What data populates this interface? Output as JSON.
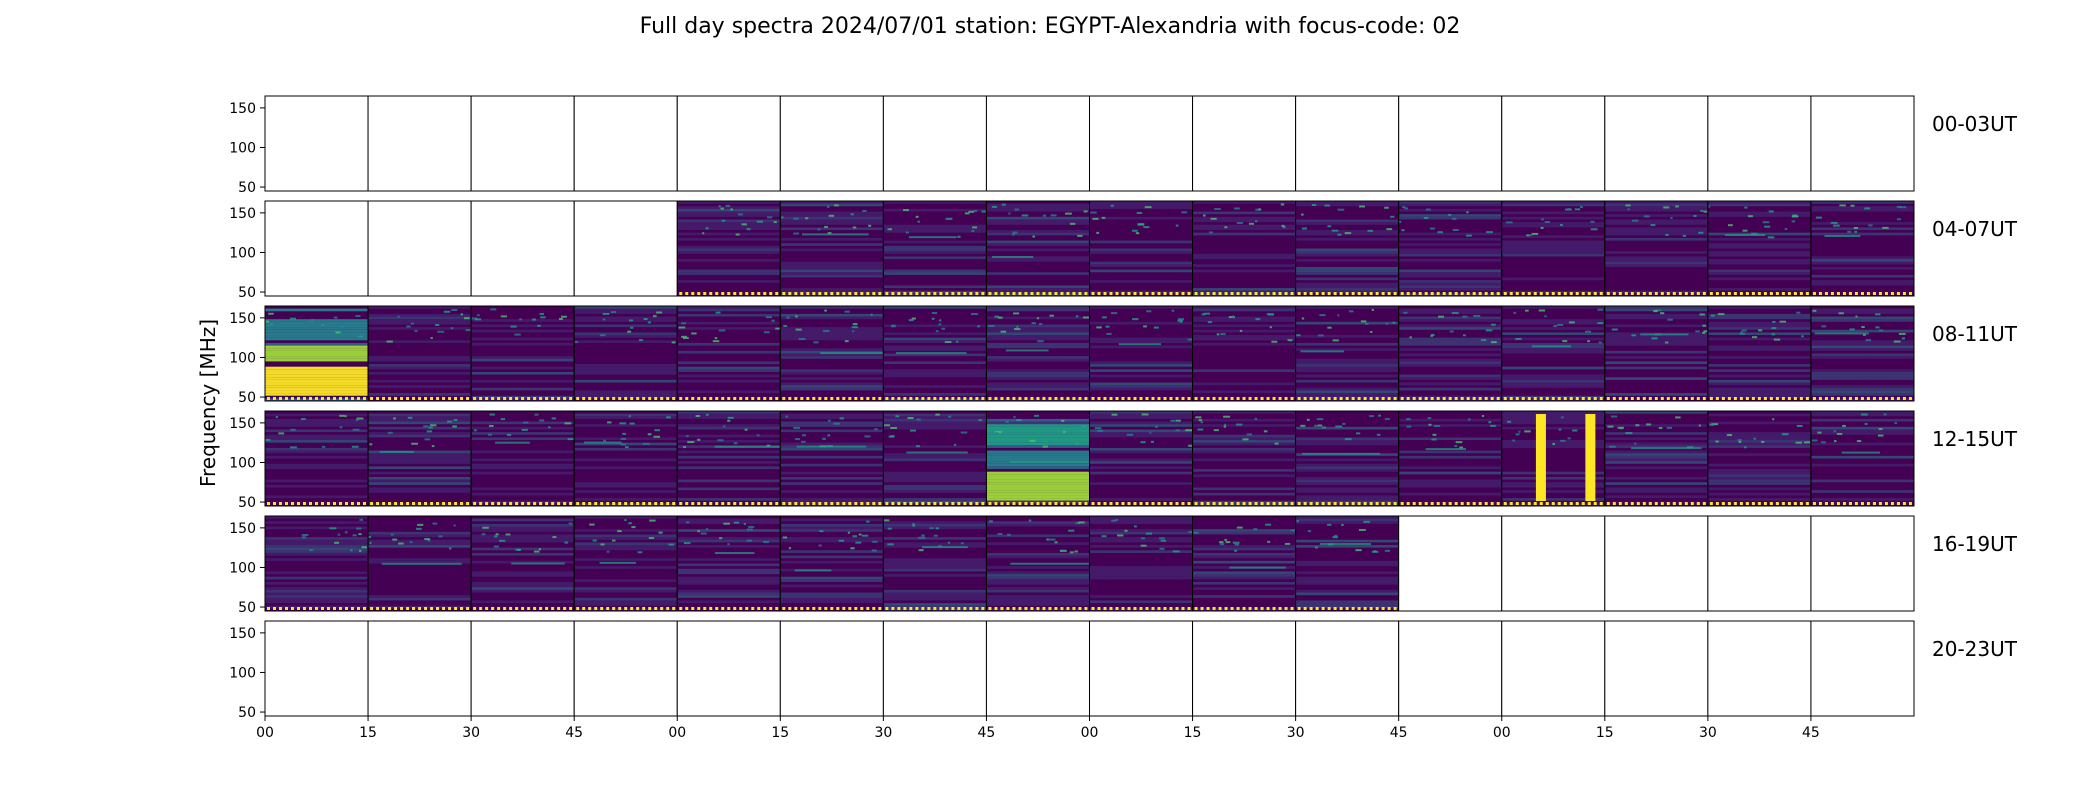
{
  "chart_data": {
    "type": "heatmap",
    "title": "Full day spectra 2024/07/01 station: EGYPT-Alexandria with focus-code: 02",
    "ylabel": "Frequency [MHz]",
    "xlabel": "",
    "y_ticks": [
      "150",
      "100",
      "50"
    ],
    "ylim": [
      45,
      165
    ],
    "x_tick_labels": [
      "00",
      "15",
      "30",
      "45",
      "00",
      "15",
      "30",
      "45",
      "00",
      "15",
      "30",
      "45",
      "00",
      "15",
      "30",
      "45"
    ],
    "colormap": [
      "#440154",
      "#46327e",
      "#365c8d",
      "#277f8e",
      "#1fa187",
      "#4ac16d",
      "#a0da39",
      "#fde725"
    ],
    "panels_per_row": 16,
    "panel_minutes": 15,
    "rows": [
      {
        "label": "00-03UT",
        "available": [
          0,
          0,
          0,
          0,
          0,
          0,
          0,
          0,
          0,
          0,
          0,
          0,
          0,
          0,
          0,
          0
        ],
        "bright": []
      },
      {
        "label": "04-07UT",
        "available": [
          0,
          0,
          0,
          0,
          1,
          1,
          1,
          1,
          1,
          1,
          1,
          1,
          1,
          1,
          1,
          1
        ],
        "bright": []
      },
      {
        "label": "08-11UT",
        "available": [
          1,
          1,
          1,
          1,
          1,
          1,
          1,
          1,
          1,
          1,
          1,
          1,
          1,
          1,
          1,
          1
        ],
        "bright": [
          0
        ]
      },
      {
        "label": "12-15UT",
        "available": [
          1,
          1,
          1,
          1,
          1,
          1,
          1,
          1,
          1,
          1,
          1,
          1,
          1,
          1,
          1,
          1
        ],
        "bright": [
          7
        ],
        "vertical_bursts": [
          12
        ]
      },
      {
        "label": "16-19UT",
        "available": [
          1,
          1,
          1,
          1,
          1,
          1,
          1,
          1,
          1,
          1,
          1,
          0,
          0,
          0,
          0,
          0
        ],
        "bright": []
      },
      {
        "label": "20-23UT",
        "available": [
          0,
          0,
          0,
          0,
          0,
          0,
          0,
          0,
          0,
          0,
          0,
          0,
          0,
          0,
          0,
          0
        ],
        "bright": []
      }
    ]
  }
}
